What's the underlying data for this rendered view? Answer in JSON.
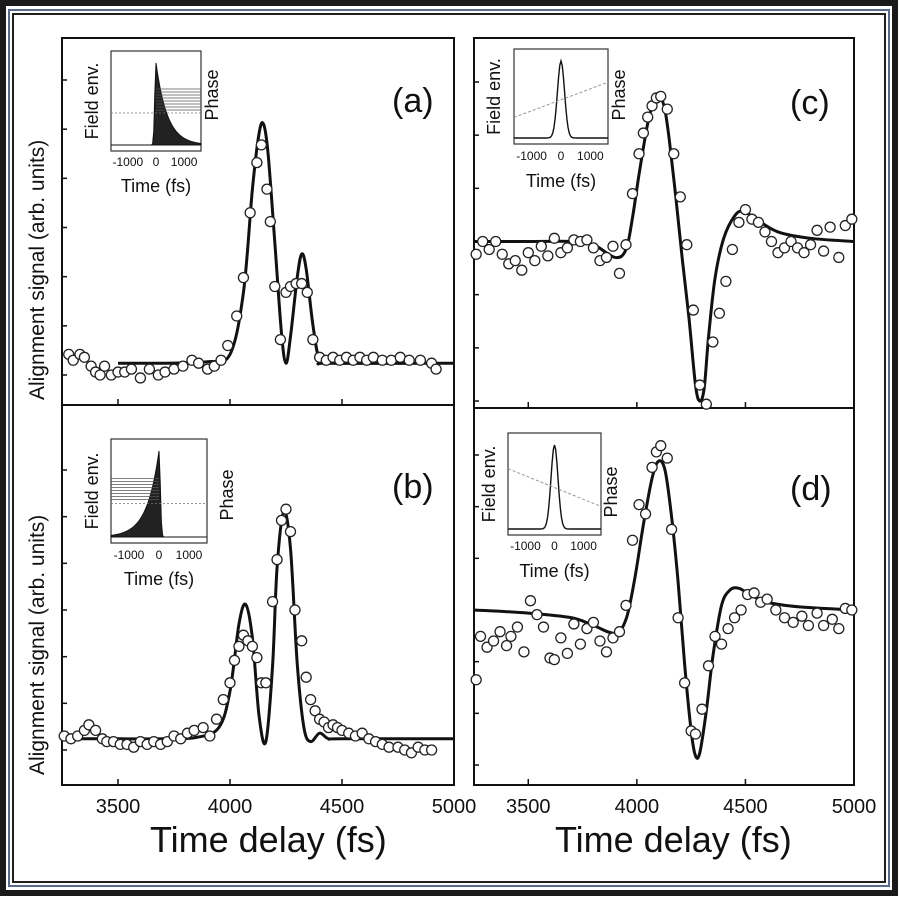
{
  "figure": {
    "ylabel_top": "Alignment signal (arb. units)",
    "ylabel_bottom": "Alignment signal (arb. units)",
    "xlabel_left": "Time delay (fs)",
    "xlabel_right": "Time delay (fs)"
  },
  "chart_data": [
    {
      "type": "line",
      "panel": "(a)",
      "xlim": [
        3250,
        5000
      ],
      "xticks": [
        3500,
        4000,
        4500,
        5000
      ],
      "ylim": [
        0,
        1
      ],
      "series": [
        {
          "kind": "fit",
          "x": [
            3500,
            3700,
            3900,
            4000,
            4060,
            4100,
            4130,
            4150,
            4170,
            4200,
            4230,
            4250,
            4270,
            4300,
            4320,
            4340,
            4370,
            4400,
            4450,
            5000
          ],
          "y": [
            0.04,
            0.04,
            0.045,
            0.07,
            0.28,
            0.63,
            0.82,
            0.85,
            0.75,
            0.45,
            0.14,
            0.04,
            0.13,
            0.33,
            0.41,
            0.36,
            0.17,
            0.05,
            0.04,
            0.04
          ]
        },
        {
          "kind": "data",
          "x": [
            3280,
            3300,
            3330,
            3350,
            3380,
            3400,
            3420,
            3440,
            3470,
            3500,
            3530,
            3560,
            3600,
            3640,
            3680,
            3710,
            3750,
            3790,
            3830,
            3860,
            3900,
            3930,
            3960,
            3990,
            4030,
            4060,
            4090,
            4120,
            4140,
            4165,
            4180,
            4200,
            4225,
            4250,
            4270,
            4295,
            4320,
            4345,
            4370,
            4400,
            4430,
            4460,
            4490,
            4520,
            4550,
            4580,
            4610,
            4640,
            4680,
            4720,
            4760,
            4800,
            4850,
            4900,
            4920
          ],
          "y": [
            0.07,
            0.05,
            0.07,
            0.06,
            0.03,
            0.01,
            0.0,
            0.03,
            0.0,
            0.01,
            0.01,
            0.02,
            -0.01,
            0.02,
            0.0,
            0.01,
            0.02,
            0.03,
            0.05,
            0.04,
            0.02,
            0.03,
            0.05,
            0.1,
            0.2,
            0.33,
            0.55,
            0.72,
            0.78,
            0.63,
            0.52,
            0.3,
            0.12,
            0.28,
            0.3,
            0.31,
            0.31,
            0.28,
            0.12,
            0.06,
            0.05,
            0.06,
            0.05,
            0.06,
            0.05,
            0.06,
            0.05,
            0.06,
            0.05,
            0.05,
            0.06,
            0.05,
            0.05,
            0.04,
            0.02
          ]
        }
      ],
      "inset": {
        "ylabel_left": "Field env.",
        "ylabel_right": "Phase",
        "xlabel": "Time (fs)",
        "xticks": [
          -1000,
          0,
          1000
        ],
        "envelope": "asym-rise"
      }
    },
    {
      "type": "line",
      "panel": "(b)",
      "xlim": [
        3250,
        5000
      ],
      "xticks": [
        3500,
        4000,
        4500,
        5000
      ],
      "ylim": [
        0,
        1
      ],
      "series": [
        {
          "kind": "fit",
          "x": [
            3250,
            3500,
            3700,
            3850,
            3950,
            4000,
            4040,
            4070,
            4100,
            4130,
            4160,
            4190,
            4210,
            4240,
            4270,
            4300,
            4330,
            4360,
            4400,
            4440,
            4500,
            5000
          ],
          "y": [
            0.04,
            0.04,
            0.04,
            0.045,
            0.08,
            0.21,
            0.45,
            0.52,
            0.4,
            0.12,
            0.03,
            0.3,
            0.65,
            0.85,
            0.72,
            0.31,
            0.08,
            0.03,
            0.06,
            0.04,
            0.04,
            0.04
          ]
        },
        {
          "kind": "data",
          "x": [
            3260,
            3290,
            3320,
            3350,
            3370,
            3400,
            3430,
            3450,
            3480,
            3510,
            3540,
            3570,
            3600,
            3630,
            3660,
            3690,
            3720,
            3750,
            3780,
            3810,
            3840,
            3880,
            3910,
            3940,
            3970,
            4000,
            4020,
            4040,
            4060,
            4080,
            4100,
            4120,
            4140,
            4160,
            4190,
            4210,
            4230,
            4250,
            4270,
            4290,
            4320,
            4340,
            4360,
            4380,
            4400,
            4420,
            4440,
            4460,
            4480,
            4500,
            4530,
            4560,
            4590,
            4620,
            4650,
            4680,
            4710,
            4750,
            4780,
            4810,
            4840,
            4870,
            4900
          ],
          "y": [
            0.05,
            0.04,
            0.05,
            0.07,
            0.09,
            0.07,
            0.04,
            0.03,
            0.03,
            0.02,
            0.02,
            0.01,
            0.03,
            0.02,
            0.03,
            0.02,
            0.03,
            0.05,
            0.04,
            0.06,
            0.07,
            0.08,
            0.05,
            0.11,
            0.18,
            0.24,
            0.32,
            0.37,
            0.41,
            0.39,
            0.37,
            0.33,
            0.24,
            0.24,
            0.53,
            0.68,
            0.82,
            0.86,
            0.78,
            0.5,
            0.39,
            0.26,
            0.18,
            0.14,
            0.11,
            0.1,
            0.08,
            0.09,
            0.08,
            0.07,
            0.06,
            0.05,
            0.06,
            0.04,
            0.03,
            0.02,
            0.01,
            0.01,
            0.0,
            -0.01,
            0.01,
            0.0,
            0.0
          ]
        }
      ],
      "inset": {
        "ylabel_left": "Field env.",
        "ylabel_right": "Phase",
        "xlabel": "Time (fs)",
        "xticks": [
          -1000,
          0,
          1000
        ],
        "envelope": "asym-fall"
      }
    },
    {
      "type": "line",
      "panel": "(c)",
      "xlim": [
        3250,
        5000
      ],
      "xticks": [
        3500,
        4000,
        4500,
        5000
      ],
      "ylim": [
        -1,
        1
      ],
      "series": [
        {
          "kind": "fit",
          "x": [
            3250,
            3500,
            3700,
            3800,
            3900,
            3950,
            3980,
            4010,
            4050,
            4080,
            4110,
            4130,
            4150,
            4180,
            4210,
            4240,
            4270,
            4290,
            4310,
            4330,
            4360,
            4400,
            4450,
            4490,
            4550,
            4650,
            4800,
            5000
          ],
          "y": [
            0.0,
            0.0,
            0.0,
            -0.02,
            -0.1,
            -0.05,
            0.15,
            0.42,
            0.74,
            0.88,
            0.9,
            0.82,
            0.63,
            0.27,
            -0.12,
            -0.48,
            -0.9,
            -1.0,
            -0.92,
            -0.6,
            -0.23,
            0.02,
            0.16,
            0.19,
            0.14,
            0.06,
            0.02,
            0.0
          ]
        },
        {
          "kind": "data",
          "x": [
            3260,
            3290,
            3320,
            3350,
            3380,
            3410,
            3440,
            3470,
            3500,
            3530,
            3560,
            3590,
            3620,
            3650,
            3680,
            3710,
            3740,
            3770,
            3800,
            3830,
            3860,
            3890,
            3920,
            3950,
            3980,
            4010,
            4030,
            4050,
            4070,
            4090,
            4110,
            4140,
            4170,
            4200,
            4230,
            4260,
            4290,
            4320,
            4350,
            4380,
            4410,
            4440,
            4470,
            4500,
            4530,
            4560,
            4590,
            4620,
            4650,
            4680,
            4710,
            4740,
            4770,
            4800,
            4830,
            4860,
            4890,
            4930,
            4960,
            4990
          ],
          "y": [
            -0.08,
            0.0,
            -0.05,
            0.0,
            -0.08,
            -0.14,
            -0.12,
            -0.18,
            -0.07,
            -0.12,
            -0.03,
            -0.09,
            0.02,
            -0.07,
            -0.04,
            0.01,
            0.0,
            0.01,
            -0.04,
            -0.12,
            -0.1,
            -0.03,
            -0.2,
            -0.02,
            0.3,
            0.55,
            0.68,
            0.78,
            0.85,
            0.9,
            0.91,
            0.83,
            0.55,
            0.28,
            -0.02,
            -0.43,
            -0.9,
            -1.02,
            -0.63,
            -0.45,
            -0.25,
            -0.05,
            0.12,
            0.2,
            0.14,
            0.12,
            0.06,
            0.0,
            -0.07,
            -0.04,
            0.0,
            -0.04,
            -0.07,
            -0.02,
            0.07,
            -0.06,
            0.09,
            -0.1,
            0.1,
            0.14
          ]
        }
      ],
      "inset": {
        "ylabel_left": "Field env.",
        "ylabel_right": "Phase",
        "xlabel": "Time (fs)",
        "xticks": [
          -1000,
          0,
          1000
        ],
        "envelope": "gauss-up"
      }
    },
    {
      "type": "line",
      "panel": "(d)",
      "xlim": [
        3250,
        5000
      ],
      "xticks": [
        3500,
        4000,
        4500,
        5000
      ],
      "ylim": [
        -1,
        1
      ],
      "series": [
        {
          "kind": "fit",
          "x": [
            3250,
            3500,
            3700,
            3800,
            3900,
            3950,
            3990,
            4030,
            4070,
            4100,
            4130,
            4160,
            4190,
            4220,
            4250,
            4270,
            4290,
            4320,
            4350,
            4390,
            4430,
            4470,
            4520,
            4600,
            4750,
            5000
          ],
          "y": [
            0.0,
            -0.02,
            -0.05,
            -0.1,
            -0.15,
            -0.06,
            0.2,
            0.55,
            0.85,
            0.96,
            0.9,
            0.6,
            0.18,
            -0.35,
            -0.78,
            -0.94,
            -0.92,
            -0.65,
            -0.3,
            0.03,
            0.13,
            0.14,
            0.1,
            0.05,
            0.02,
            0.0
          ]
        },
        {
          "kind": "data",
          "x": [
            3260,
            3280,
            3310,
            3340,
            3370,
            3400,
            3420,
            3450,
            3480,
            3510,
            3540,
            3570,
            3600,
            3620,
            3650,
            3680,
            3710,
            3740,
            3770,
            3800,
            3830,
            3860,
            3890,
            3920,
            3950,
            3980,
            4010,
            4040,
            4070,
            4090,
            4110,
            4140,
            4160,
            4190,
            4220,
            4250,
            4270,
            4300,
            4330,
            4360,
            4390,
            4420,
            4450,
            4480,
            4510,
            4540,
            4570,
            4600,
            4640,
            4680,
            4720,
            4760,
            4790,
            4830,
            4860,
            4900,
            4930,
            4960,
            4990
          ],
          "y": [
            -0.45,
            -0.17,
            -0.24,
            -0.2,
            -0.14,
            -0.23,
            -0.17,
            -0.11,
            -0.27,
            0.06,
            -0.03,
            -0.11,
            -0.31,
            -0.32,
            -0.18,
            -0.28,
            -0.09,
            -0.22,
            -0.12,
            -0.08,
            -0.2,
            -0.27,
            -0.18,
            -0.14,
            0.03,
            0.45,
            0.68,
            0.62,
            0.92,
            1.02,
            1.06,
            0.98,
            0.52,
            -0.05,
            -0.47,
            -0.78,
            -0.8,
            -0.64,
            -0.36,
            -0.17,
            -0.22,
            -0.12,
            -0.05,
            0.0,
            0.1,
            0.11,
            0.05,
            0.07,
            0.0,
            -0.05,
            -0.08,
            -0.04,
            -0.1,
            -0.02,
            -0.1,
            -0.06,
            -0.12,
            0.01,
            0.0
          ]
        }
      ],
      "inset": {
        "ylabel_left": "Field env.",
        "ylabel_right": "Phase",
        "xlabel": "Time (fs)",
        "xticks": [
          -1000,
          0,
          1000
        ],
        "envelope": "gauss-down"
      }
    }
  ]
}
